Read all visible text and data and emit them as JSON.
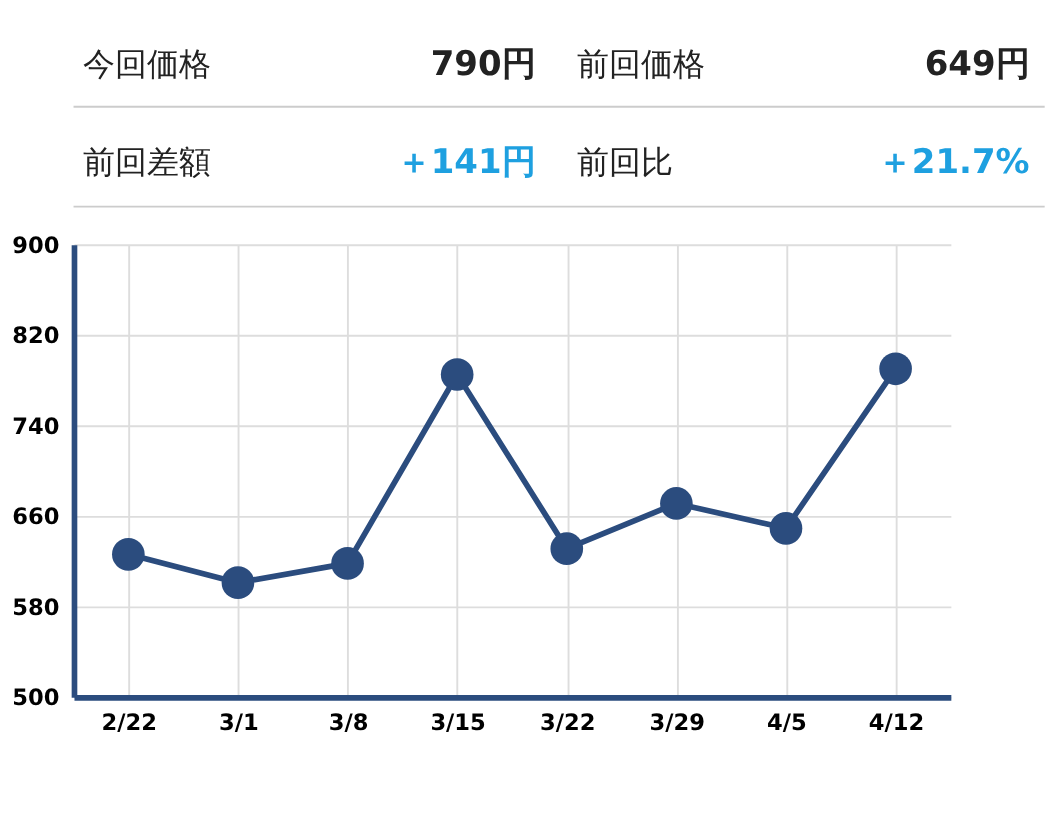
{
  "chart_data": {
    "type": "line",
    "annotations": [
      "今回価格",
      "790円",
      "前回価格",
      "649円",
      "前回差額",
      "＋141円",
      "前回比",
      "＋21.7%"
    ],
    "categories": [
      "2/22",
      "3/1",
      "3/8",
      "3/15",
      "3/22",
      "3/29",
      "4/5",
      "4/12"
    ],
    "series": [
      {
        "color": "#2b4c7e",
        "values": [
          626,
          601,
          618,
          785,
          631,
          671,
          649,
          790
        ]
      }
    ],
    "ylim": [
      500,
      900
    ],
    "yticks": [
      500,
      580,
      660,
      740,
      820,
      900
    ],
    "grid": true,
    "marker": "circle",
    "line_style": "solid"
  }
}
